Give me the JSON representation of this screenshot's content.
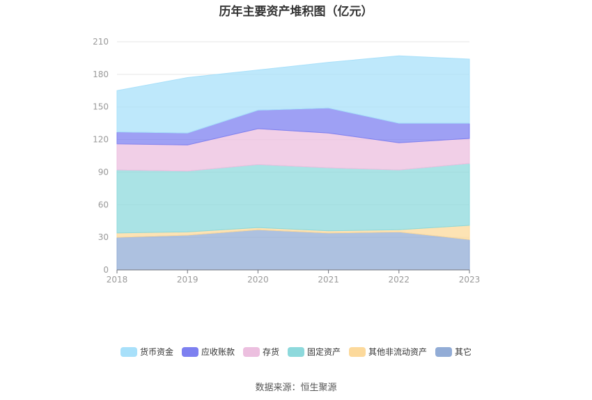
{
  "title": "历年主要资产堆积图（亿元）",
  "source": "数据来源：恒生聚源",
  "colors": {
    "货币资金": "#a8e0fa",
    "应收账款": "#7d80f0",
    "存货": "#ecbfdf",
    "固定资产": "#8dd9dc",
    "其他非流动资产": "#fcd99b",
    "其它": "#92acd6"
  },
  "chart_data": {
    "type": "area",
    "stacked": true,
    "title": "历年主要资产堆积图（亿元）",
    "x": [
      "2018",
      "2019",
      "2020",
      "2021",
      "2022",
      "2023"
    ],
    "ylim": [
      0,
      210
    ],
    "yticks": [
      0,
      30,
      60,
      90,
      120,
      150,
      180,
      210
    ],
    "grid": true,
    "legend_position": "bottom",
    "series": [
      {
        "name": "其它",
        "values": [
          30,
          32,
          37,
          34,
          35,
          28
        ]
      },
      {
        "name": "其他非流动资产",
        "values": [
          4,
          3,
          2,
          2,
          2,
          13
        ]
      },
      {
        "name": "固定资产",
        "values": [
          58,
          56,
          58,
          58,
          55,
          57
        ]
      },
      {
        "name": "存货",
        "values": [
          24,
          24,
          33,
          32,
          25,
          23
        ]
      },
      {
        "name": "应收账款",
        "values": [
          11,
          11,
          17,
          23,
          18,
          14
        ]
      },
      {
        "name": "货币资金",
        "values": [
          38,
          51,
          37,
          42,
          62,
          59
        ]
      }
    ]
  }
}
